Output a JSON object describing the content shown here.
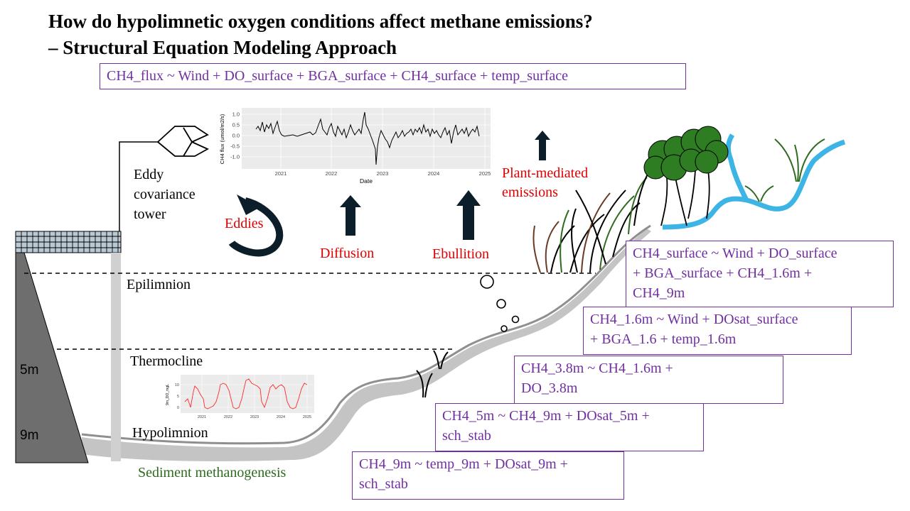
{
  "title": {
    "line1": "How do hypolimnetic oxygen conditions affect methane emissions?",
    "line2": "– Structural Equation Modeling Approach"
  },
  "equations": {
    "flux": "CH4_flux ~ Wind + DO_surface + BGA_surface + CH4_surface + temp_surface",
    "surface": [
      "CH4_surface ~ Wind + DO_surface",
      "+ BGA_surface + CH4_1.6m +",
      "CH4_9m"
    ],
    "m1_6": [
      "CH4_1.6m ~ Wind + DOsat_surface",
      "+ BGA_1.6 + temp_1.6m"
    ],
    "m3_8": [
      "CH4_3.8m ~ CH4_1.6m +",
      "DO_3.8m"
    ],
    "m5": [
      "CH4_5m ~ CH4_9m + DOsat_5m +",
      "sch_stab"
    ],
    "m9": [
      "CH4_9m ~ temp_9m + DOsat_9m +",
      "sch_stab"
    ]
  },
  "labels": {
    "tower": [
      "Eddy",
      "covariance",
      "tower"
    ],
    "eddies": "Eddies",
    "diffusion": "Diffusion",
    "ebullition": "Ebullition",
    "plant": [
      "Plant-mediated",
      "emissions"
    ],
    "epilimnion": "Epilimnion",
    "thermocline": "Thermocline",
    "hypolimnion": "Hypolimnion",
    "sediment": "Sediment methanogenesis",
    "depth_5m": "5m",
    "depth_9m": "9m"
  },
  "inset_flux": {
    "ylabel": "CH4 flux (umol/m2/s)",
    "xlabel": "Date",
    "yticks": [
      "1.0",
      "0.5",
      "0.0",
      "-0.5",
      "-1.0"
    ],
    "xticks": [
      "2021",
      "2022",
      "2023",
      "2024",
      "2025"
    ]
  },
  "inset_do": {
    "ylabel": "9m_DO_mgL",
    "yticks": [
      "10",
      "5",
      "0"
    ],
    "xticks": [
      "2021",
      "2022",
      "2023",
      "2024",
      "2025"
    ]
  },
  "colors": {
    "equation": "#7030a0",
    "process": "#e00000",
    "sediment": "#2e6b1f",
    "dam": "#6e6e6e",
    "stream": "#3cb4e6",
    "tree": "#2e7d22",
    "do_series": "#ff2a2a"
  }
}
